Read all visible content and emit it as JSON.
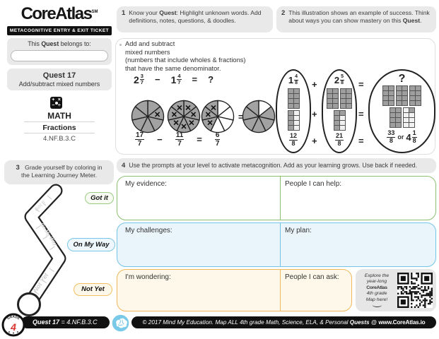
{
  "sidebar": {
    "logo": "CoreAtlas",
    "logo_mark": "SM",
    "banner": "METACOGNITIVE ENTRY & EXIT TICKET",
    "belongs": {
      "pre": "This ",
      "bold": "Quest",
      "post": " belongs to:",
      "input_value": ""
    },
    "quest_title": "Quest 17",
    "quest_subtitle": "Add/subtract mixed numbers",
    "math_icon_symbols": [
      "+",
      "×",
      "−",
      "÷"
    ],
    "subject": "MATH",
    "topic": "Fractions",
    "standard": "4.NF.B.3.C"
  },
  "sections": {
    "s1": {
      "num": "1",
      "pre": "Know your ",
      "bold": "Quest",
      "post": ": Highlight unknown words. Add definitions, notes, questions, & doodles."
    },
    "s2": {
      "num": "2",
      "pre": "This illustration shows an example of success. Think about ways you can show mastery on this ",
      "bold": "Quest",
      "post": "."
    },
    "s3": {
      "num": "3",
      "line1": "Grade yourself by coloring in",
      "line2": "the Learning Journey Meter."
    },
    "s4": {
      "num": "4",
      "text": "Use the prompts at your level to activate metacognition. Add as your learning grows. Use back if needed."
    }
  },
  "goal": {
    "lines": [
      "Add and subtract",
      "mixed numbers",
      "(numbers that include wholes & fractions)",
      "that have the same denominator."
    ]
  },
  "pie_example": {
    "top": [
      {
        "type": "mixed",
        "whole": "2",
        "num": "3",
        "den": "7"
      },
      {
        "type": "op",
        "text": "−"
      },
      {
        "type": "mixed",
        "whole": "1",
        "num": "4",
        "den": "7"
      },
      {
        "type": "op",
        "text": "="
      },
      {
        "type": "op",
        "text": "?"
      }
    ],
    "pies": [
      {
        "slices": 7,
        "shaded": [
          0,
          1,
          2,
          3,
          4,
          5,
          6
        ],
        "crossed": [
          1
        ]
      },
      {
        "slices": 7,
        "shaded": [
          0,
          1,
          2,
          3,
          4,
          5,
          6
        ],
        "crossed": [
          0,
          1,
          2,
          3,
          4,
          5,
          6
        ]
      },
      {
        "slices": 7,
        "shaded": [
          4,
          5,
          6
        ],
        "crossed": [
          4,
          5,
          6
        ]
      },
      {
        "slices": 7,
        "shaded": [
          1,
          2,
          3,
          4,
          5,
          6
        ],
        "crossed": []
      }
    ],
    "pies_equals": "=",
    "bottom": [
      {
        "type": "frac",
        "num": "17",
        "den": "7"
      },
      {
        "type": "op",
        "text": "−"
      },
      {
        "type": "frac",
        "num": "11",
        "den": "7"
      },
      {
        "type": "op",
        "text": "="
      },
      {
        "type": "frac",
        "num": "6",
        "den": "7"
      }
    ]
  },
  "block_example": {
    "plus": "+",
    "equals": "=",
    "groups": [
      {
        "label": {
          "type": "mixed",
          "whole": "1",
          "num": "4",
          "den": "8"
        },
        "top_blocks": [
          {
            "filled": 8
          }
        ],
        "bottom_blocks": [
          {
            "filled": 4
          }
        ],
        "fraction": {
          "num": "12",
          "den": "8"
        }
      },
      {
        "label": {
          "type": "mixed",
          "whole": "2",
          "num": "5",
          "den": "8"
        },
        "top_blocks": [
          {
            "filled": 8
          },
          {
            "filled": 8
          }
        ],
        "bottom_blocks": [
          {
            "filled": 5
          }
        ],
        "fraction": {
          "num": "21",
          "den": "8"
        }
      },
      {
        "label": {
          "type": "q",
          "text": "?"
        },
        "top_blocks": [
          {
            "filled": 8
          },
          {
            "filled": 8
          },
          {
            "filled": 8
          }
        ],
        "bottom_blocks": [
          {
            "filled": 8
          },
          {
            "filled": 1,
            "anchor": "tr"
          }
        ],
        "fraction": {
          "num": "33",
          "den": "8"
        },
        "or": "or",
        "mixed": {
          "whole": "4",
          "num": "1",
          "den": "8"
        }
      }
    ]
  },
  "meter": {
    "pills": [
      {
        "label": "Got it"
      },
      {
        "label": "On My Way"
      },
      {
        "label": "Not Yet"
      }
    ],
    "inner_labels": [
      "Got it",
      "On My Way",
      "Not Yet"
    ]
  },
  "prompts": {
    "boxes": [
      {
        "left": "My evidence:",
        "right": "People I can help:"
      },
      {
        "left": "My challenges:",
        "right": "My plan:"
      },
      {
        "left": "I'm wondering:",
        "right": "People I can ask:"
      }
    ]
  },
  "explore": {
    "lines": [
      "Explore the",
      "year-long",
      "CoreAtlas",
      "4th grade",
      "Map here!"
    ]
  },
  "footer": {
    "badge_top": "GRADE",
    "badge_number": "4",
    "quest_bold": "Quest 17",
    "quest_rest": " = 4.NF.B.3.C",
    "copyright": "© 2017 Mind My Education.",
    "map_pre": "  Map ALL 4th grade Math, Science, ELA, & Personal ",
    "map_bold": "Quests",
    "map_mid": " @ ",
    "site": "www.CoreAtlas.io"
  },
  "colors": {
    "green": "#8cbf72",
    "blue": "#74c4e6",
    "orange": "#f0b85a",
    "header_gray": "#e9e9e9",
    "black": "#111111",
    "red": "#d9342b",
    "block_gray": "#9e9e9e",
    "pie_gray": "#a2a2a2",
    "brain_blue": "#79c9e8"
  }
}
